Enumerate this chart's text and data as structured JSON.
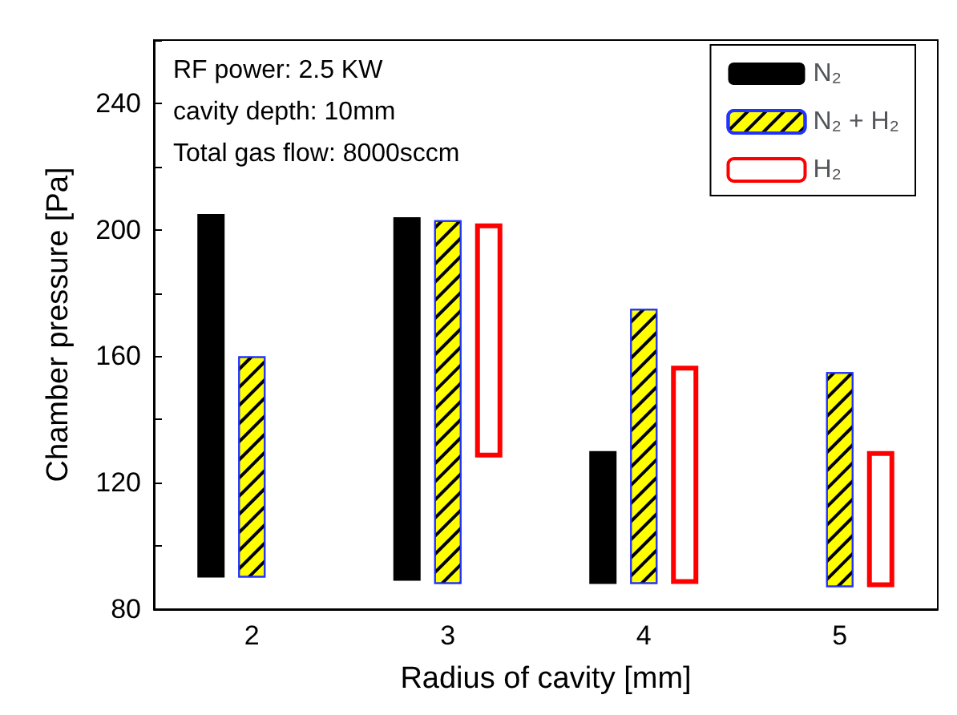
{
  "chart_data": {
    "type": "bar",
    "xlabel": "Radius of cavity [mm]",
    "ylabel": "Chamber pressure [Pa]",
    "annotations": [
      "RF power: 2.5 KW",
      "cavity depth: 10mm",
      "Total gas flow: 8000sccm"
    ],
    "categories": [
      "2",
      "3",
      "4",
      "5"
    ],
    "series": [
      {
        "name": "N₂",
        "color": "#000000",
        "base": [
          90,
          89,
          88,
          null
        ],
        "values": [
          115,
          115,
          42,
          null
        ]
      },
      {
        "name": "N₂ + H₂",
        "color": "#ffff00",
        "base": [
          90,
          88,
          88,
          87
        ],
        "values": [
          70,
          115,
          87,
          68
        ]
      },
      {
        "name": "H₂",
        "color": "#ff0000",
        "base": [
          null,
          128,
          88,
          87
        ],
        "values": [
          null,
          74,
          69,
          43
        ]
      }
    ],
    "ylim": [
      80,
      260
    ],
    "yticks": [
      80,
      {
        "value": 100,
        "label": null
      },
      120,
      {
        "value": 140,
        "label": null
      },
      160,
      {
        "value": 180,
        "label": null
      },
      200,
      {
        "value": 220,
        "label": null
      },
      240,
      {
        "value": 260,
        "label": null
      }
    ],
    "grid": false,
    "legend": "top right"
  }
}
